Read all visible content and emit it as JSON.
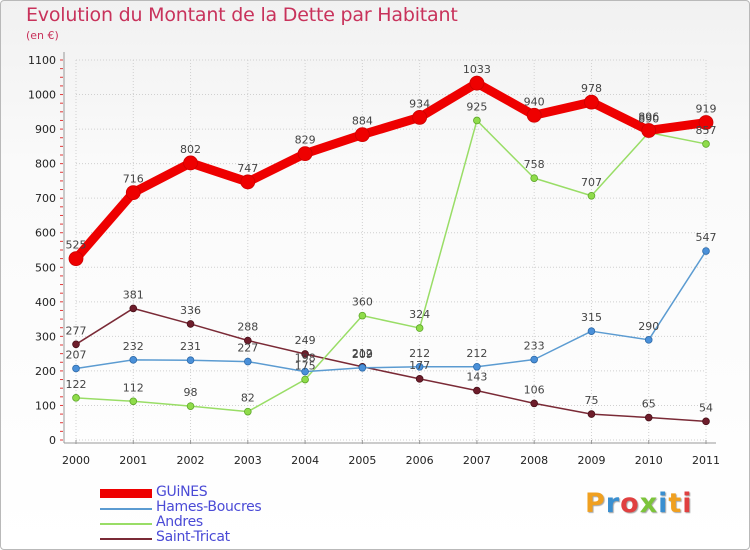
{
  "title": "Evolution du Montant de la Dette par Habitant",
  "subtitle": "(en €)",
  "logo": "Proxiti",
  "chart_data": {
    "type": "line",
    "x": [
      "2000",
      "2001",
      "2002",
      "2003",
      "2004",
      "2005",
      "2006",
      "2007",
      "2008",
      "2009",
      "2010",
      "2011"
    ],
    "ylim": [
      0,
      1100
    ],
    "yticks": [
      0,
      100,
      200,
      300,
      400,
      500,
      600,
      700,
      800,
      900,
      1000,
      1100
    ],
    "grid": true,
    "legend_position": "bottom-left",
    "series": [
      {
        "name": "GUiNES",
        "color": "#ee0000",
        "values": [
          525,
          716,
          802,
          747,
          829,
          884,
          934,
          1033,
          940,
          978,
          896,
          919
        ]
      },
      {
        "name": "Hames-Boucres",
        "color": "#5b9bd1",
        "values": [
          207,
          232,
          231,
          227,
          198,
          209,
          212,
          212,
          233,
          315,
          290,
          547
        ]
      },
      {
        "name": "Andres",
        "color": "#99dd66",
        "values": [
          122,
          112,
          98,
          82,
          175,
          360,
          324,
          925,
          758,
          707,
          890,
          857
        ]
      },
      {
        "name": "Saint-Tricat",
        "color": "#7a2a36",
        "values": [
          277,
          381,
          336,
          288,
          249,
          212,
          177,
          143,
          106,
          75,
          65,
          54
        ]
      }
    ]
  }
}
